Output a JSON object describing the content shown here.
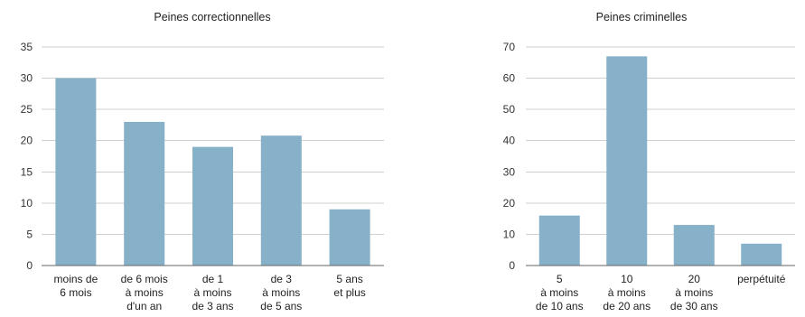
{
  "chart_data": [
    {
      "type": "bar",
      "title": "Peines correctionnelles",
      "categories": [
        [
          "moins de",
          "6 mois"
        ],
        [
          "de 6 mois",
          "à moins",
          "d'un an"
        ],
        [
          "de 1",
          "à moins",
          "de 3 ans"
        ],
        [
          "de 3",
          "à moins",
          "de 5 ans"
        ],
        [
          "5 ans",
          "et plus"
        ]
      ],
      "values": [
        30,
        23,
        19,
        20.8,
        9
      ],
      "ylim": [
        0,
        35
      ],
      "yticks": [
        0,
        5,
        10,
        15,
        20,
        25,
        30,
        35
      ],
      "grid": true,
      "color": "#86b1c8"
    },
    {
      "type": "bar",
      "title": "Peines criminelles",
      "categories": [
        [
          "5",
          "à moins",
          "de 10 ans"
        ],
        [
          "10",
          "à moins",
          "de 20 ans"
        ],
        [
          "20",
          "à moins",
          "de 30 ans"
        ],
        [
          "perpétuité"
        ]
      ],
      "values": [
        16,
        67,
        13,
        7
      ],
      "ylim": [
        0,
        70
      ],
      "yticks": [
        0,
        10,
        20,
        30,
        40,
        50,
        60,
        70
      ],
      "grid": true,
      "color": "#86b1c8"
    }
  ]
}
